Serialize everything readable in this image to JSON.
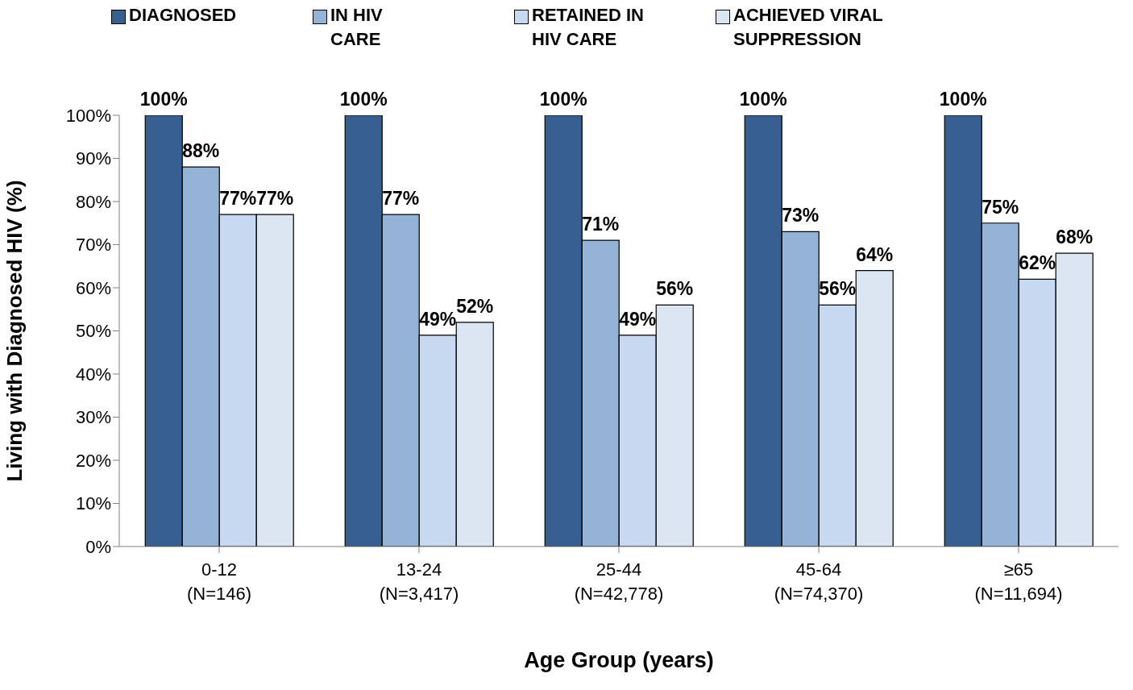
{
  "chart_data": {
    "type": "bar",
    "xlabel": "Age Group (years)",
    "ylabel": "Living with Diagnosed HIV (%)",
    "categories": [
      "0-12 (N=146)",
      "13-24 (N=3,417)",
      "25-44 (N=42,778)",
      "45-64 (N=74,370)",
      "≥65 (N=11,694)"
    ],
    "series": [
      {
        "name": "DIAGNOSED",
        "color": "#375f91",
        "values": [
          100,
          100,
          100,
          100,
          100
        ],
        "value_labels": [
          "100%",
          "100%",
          "100%",
          "100%",
          "100%"
        ]
      },
      {
        "name": "IN HIV CARE",
        "color": "#95b3d7",
        "values": [
          88,
          77,
          71,
          73,
          75
        ],
        "value_labels": [
          "88%",
          "77%",
          "71%",
          "73%",
          "75%"
        ]
      },
      {
        "name": "RETAINED IN HIV CARE",
        "color": "#c6d9f0",
        "values": [
          77,
          49,
          49,
          56,
          62
        ],
        "value_labels": [
          "77%",
          "49%",
          "49%",
          "56%",
          "62%"
        ]
      },
      {
        "name": "ACHIEVED VIRAL SUPPRESSION",
        "color": "#dce6f2",
        "values": [
          77,
          52,
          56,
          64,
          68
        ],
        "value_labels": [
          "77%",
          "52%",
          "56%",
          "64%",
          "68%"
        ]
      }
    ],
    "ylim": [
      0,
      100
    ],
    "yticks": [
      {
        "value": 0,
        "label": "0%"
      },
      {
        "value": 10,
        "label": "10%"
      },
      {
        "value": 20,
        "label": "20%"
      },
      {
        "value": 30,
        "label": "30%"
      },
      {
        "value": 40,
        "label": "40%"
      },
      {
        "value": 50,
        "label": "50%"
      },
      {
        "value": 60,
        "label": "60%"
      },
      {
        "value": 70,
        "label": "70%"
      },
      {
        "value": 80,
        "label": "80%"
      },
      {
        "value": 90,
        "label": "90%"
      },
      {
        "value": 100,
        "label": "100%"
      }
    ],
    "grid": false,
    "legend": "top"
  }
}
